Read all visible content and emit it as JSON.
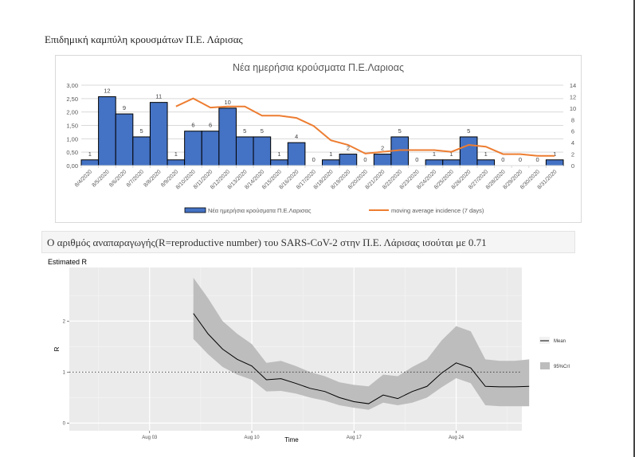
{
  "page": {
    "heading": "Επιδημική καμπύλη κρουσμάτων Π.Ε. Λάρισας",
    "r_statement": "Ο αριθμός αναπαραγωγής(R=reproductive number) του SARS-CoV-2 στην Π.Ε. Λάρισας ισούται με 0.71"
  },
  "chart_data": [
    {
      "type": "bar",
      "title": "Νέα ημερήσια κρούσματα Π.Ε.Λαριοας",
      "categories": [
        "8/4/2020",
        "8/5/2020",
        "8/6/2020",
        "8/7/2020",
        "8/8/2020",
        "8/9/2020",
        "8/10/2020",
        "8/11/2020",
        "8/12/2020",
        "8/13/2020",
        "8/14/2020",
        "8/15/2020",
        "8/16/2020",
        "8/17/2020",
        "8/18/2020",
        "8/19/2020",
        "8/20/2020",
        "8/21/2020",
        "8/22/2020",
        "8/23/2020",
        "8/24/2020",
        "8/25/2020",
        "8/26/2020",
        "8/27/2020",
        "8/28/2020",
        "8/29/2020",
        "8/30/2020",
        "8/31/2020"
      ],
      "series": [
        {
          "name": "Νέα ημερήσια κρούσματα Π.Ε.Λαρισας",
          "kind": "bar",
          "axis": "right",
          "color": "#4472c4",
          "values": [
            1,
            12,
            9,
            5,
            11,
            1,
            6,
            6,
            10,
            5,
            5,
            1,
            4,
            0,
            1,
            2,
            0,
            2,
            5,
            0,
            1,
            1,
            5,
            1,
            0,
            0,
            0,
            1
          ],
          "data_labels": [
            "1",
            "12",
            "9",
            "5",
            "11",
            "1",
            "6",
            "6",
            "10",
            "5",
            "5",
            "1",
            "4",
            "0",
            "1",
            "2",
            "0",
            "2",
            "5",
            "0",
            "1",
            "1",
            "5",
            "1",
            "0",
            "0",
            "0",
            "1"
          ]
        },
        {
          "name": "moving average incidence (7 days)",
          "kind": "line",
          "axis": "right",
          "color": "#ed7d31",
          "values": [
            null,
            null,
            null,
            null,
            null,
            10.3,
            11.7,
            10.1,
            10.3,
            10.3,
            8.7,
            8.7,
            8.3,
            6.9,
            4.4,
            3.6,
            2.1,
            2.4,
            2.7,
            2.7,
            2.7,
            2.4,
            3.6,
            3.3,
            2.0,
            2.0,
            1.7,
            1.7
          ]
        }
      ],
      "left_axis": {
        "ylim": [
          0,
          3
        ],
        "ticks": [
          "0,00",
          "0,50",
          "1,00",
          "1,50",
          "2,00",
          "2,50",
          "3,00"
        ]
      },
      "right_axis": {
        "ylim": [
          0,
          14
        ],
        "ticks": [
          "0",
          "2",
          "4",
          "6",
          "8",
          "10",
          "12",
          "14"
        ]
      },
      "grid": true,
      "legend": "bottom",
      "legend_labels": [
        "Νέα ημερήσια κρούσματα Π.Ε.Λαρισας",
        "moving average incidence (7 days)"
      ]
    },
    {
      "type": "line",
      "title": "Estimated R",
      "xlabel": "Time",
      "ylabel": "R",
      "x_ticks": [
        "Aug 03",
        "Aug 10",
        "Aug 17",
        "Aug 24"
      ],
      "y_ticks": [
        "0",
        "1",
        "2"
      ],
      "ylim": [
        -0.15,
        3.05
      ],
      "xlim_days_from_aug03": [
        -5.5,
        25.5
      ],
      "reference_line": 1,
      "grid": true,
      "legend": "right",
      "legend_labels": [
        "Mean",
        "95%CrI"
      ],
      "series": [
        {
          "name": "Mean",
          "color": "#000000",
          "x_days_from_aug03": [
            3,
            4,
            5,
            6,
            7,
            8,
            9,
            10,
            11,
            12,
            13,
            14,
            15,
            16,
            17,
            18,
            19,
            20,
            21,
            22,
            23,
            24,
            25,
            26
          ],
          "values": [
            2.15,
            1.75,
            1.45,
            1.25,
            1.12,
            0.85,
            0.87,
            0.78,
            0.68,
            0.62,
            0.5,
            0.42,
            0.38,
            0.55,
            0.48,
            0.62,
            0.72,
            0.98,
            1.18,
            1.08,
            0.72,
            0.71,
            0.71,
            0.72
          ]
        },
        {
          "name": "95%CrI",
          "color": "#bdbdbd",
          "x_days_from_aug03": [
            3,
            4,
            5,
            6,
            7,
            8,
            9,
            10,
            11,
            12,
            13,
            14,
            15,
            16,
            17,
            18,
            19,
            20,
            21,
            22,
            23,
            24,
            25,
            26
          ],
          "lower": [
            1.65,
            1.35,
            1.1,
            0.95,
            0.85,
            0.62,
            0.63,
            0.58,
            0.5,
            0.44,
            0.35,
            0.3,
            0.26,
            0.4,
            0.35,
            0.4,
            0.5,
            0.7,
            0.88,
            0.78,
            0.35,
            0.33,
            0.33,
            0.33
          ],
          "upper": [
            2.85,
            2.45,
            2.0,
            1.75,
            1.55,
            1.18,
            1.22,
            1.12,
            1.0,
            0.92,
            0.8,
            0.75,
            0.72,
            0.95,
            0.92,
            1.1,
            1.25,
            1.62,
            1.9,
            1.8,
            1.25,
            1.22,
            1.22,
            1.25
          ]
        }
      ]
    }
  ]
}
